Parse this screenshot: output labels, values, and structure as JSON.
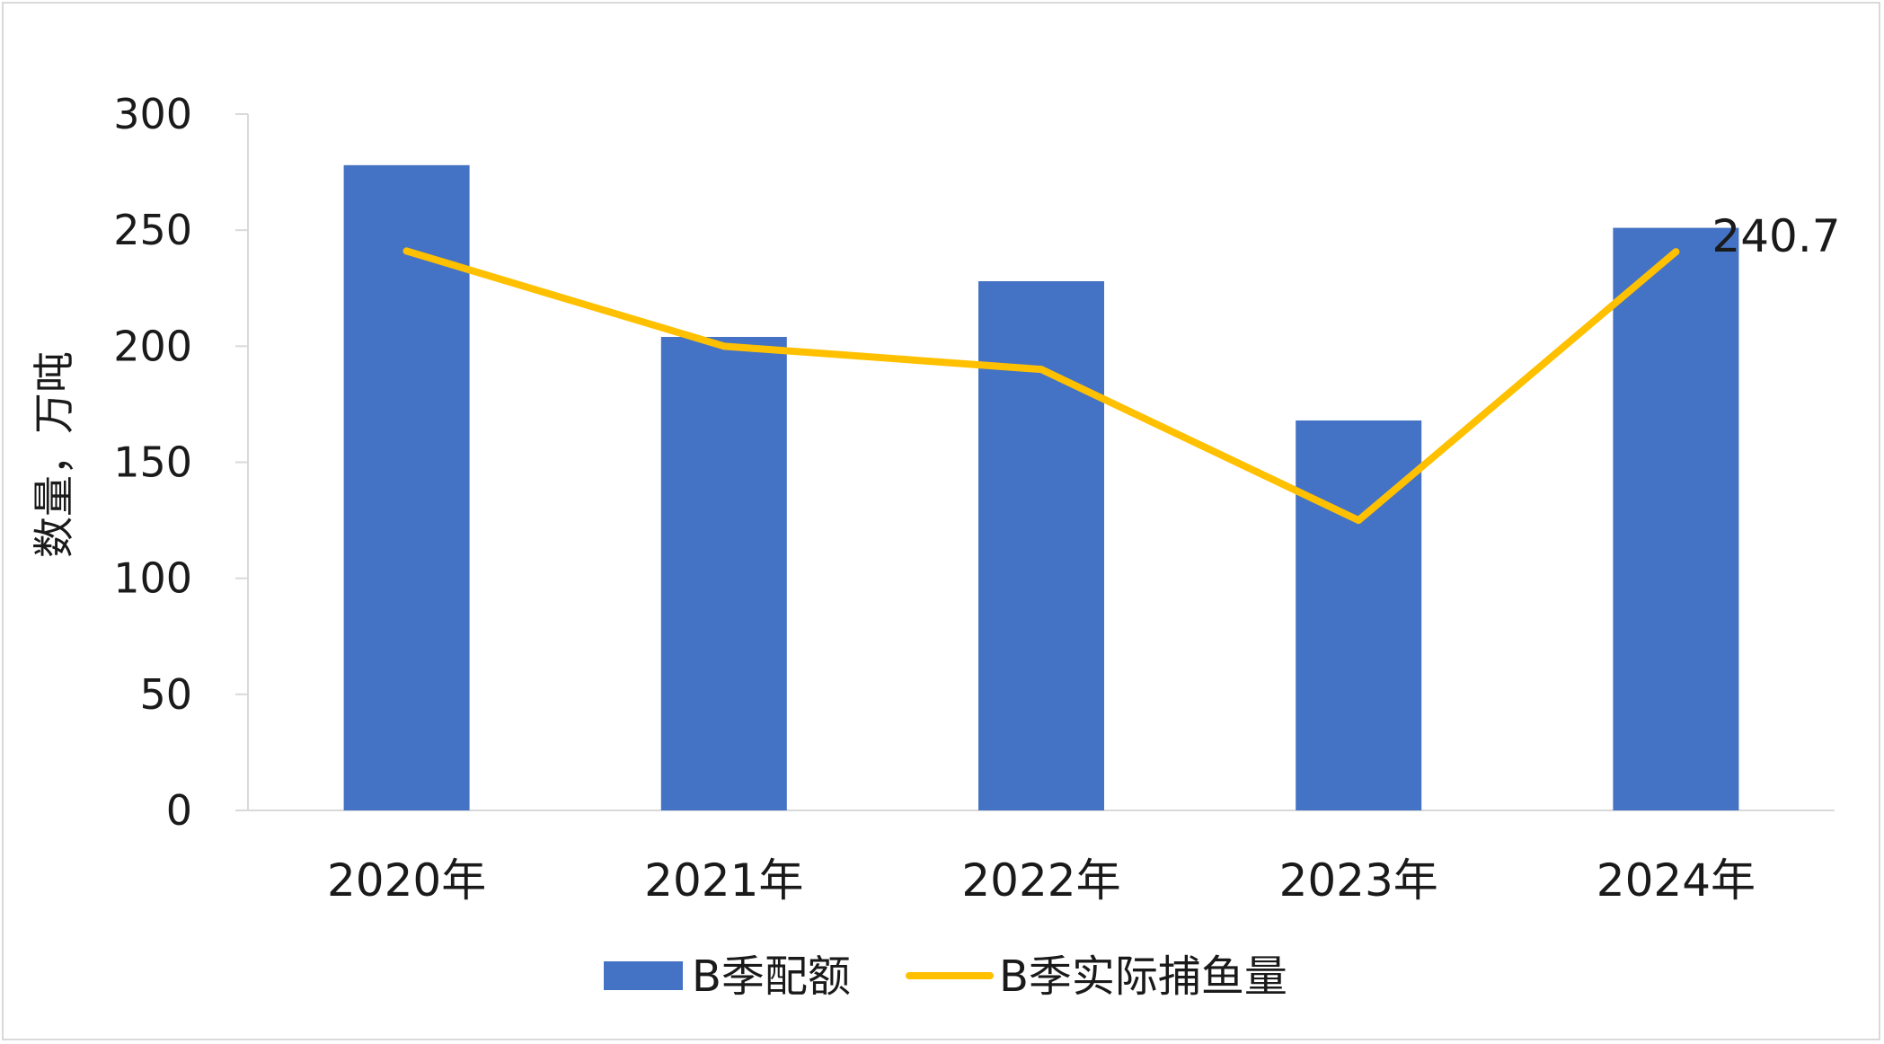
{
  "chart_data": {
    "type": "bar",
    "categories": [
      "2020年",
      "2021年",
      "2022年",
      "2023年",
      "2024年"
    ],
    "ylabel": "数量，万吨",
    "ylim": [
      0,
      300
    ],
    "yticks": [
      0,
      50,
      100,
      150,
      200,
      250,
      300
    ],
    "grid": false,
    "legend_position": "bottom",
    "series": [
      {
        "name": "B季配额",
        "type": "bar",
        "color": "#4472C4",
        "values": [
          278,
          204,
          228,
          168,
          251
        ]
      },
      {
        "name": "B季实际捕鱼量",
        "type": "line",
        "color": "#FFC000",
        "values": [
          241,
          200,
          190,
          125,
          240.7
        ]
      }
    ],
    "annotations": [
      {
        "series": 1,
        "index": 4,
        "text": "240.7"
      }
    ]
  }
}
